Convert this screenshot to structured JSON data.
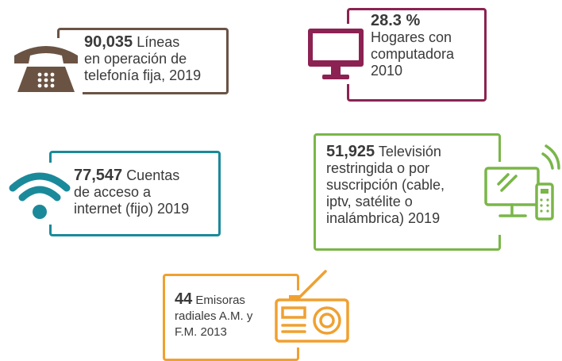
{
  "items": [
    {
      "value": "90,035",
      "lines": [
        "Líneas",
        "en operación de",
        "telefonía fija, 2019"
      ]
    },
    {
      "value": "28.3 %",
      "lines": [
        "Hogares con",
        "computadora",
        "2010"
      ]
    },
    {
      "value": "77,547",
      "lines": [
        "Cuentas",
        "de acceso a",
        "internet (fijo) 2019"
      ]
    },
    {
      "value": "51,925",
      "lines": [
        "Televisión",
        "restringida o por",
        "suscripción (cable,",
        "iptv, satélite o",
        "inalámbrica) 2019"
      ]
    },
    {
      "value": "44",
      "lines": [
        "Emisoras",
        "radiales A.M. y",
        "F.M. 2013"
      ]
    }
  ]
}
